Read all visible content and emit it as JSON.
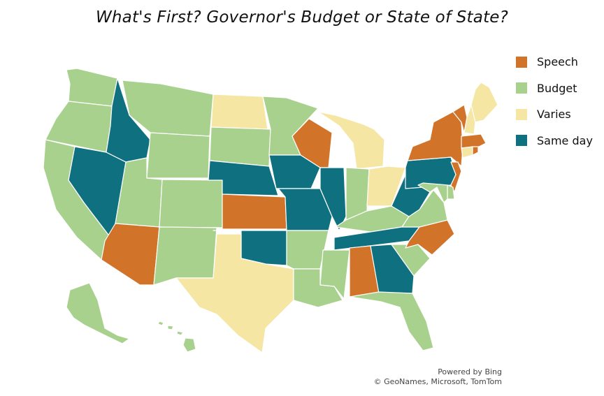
{
  "title": "What's First? Governor's Budget or State of State?",
  "legend": [
    {
      "key": "speech",
      "label": "Speech",
      "color": "#D2732A"
    },
    {
      "key": "budget",
      "label": "Budget",
      "color": "#A9D18E"
    },
    {
      "key": "varies",
      "label": "Varies",
      "color": "#F5E6A3"
    },
    {
      "key": "same",
      "label": "Same day",
      "color": "#0F7180"
    }
  ],
  "states": {
    "WA": "budget",
    "OR": "budget",
    "CA": "budget",
    "NV": "same",
    "ID": "same",
    "MT": "budget",
    "WY": "budget",
    "UT": "budget",
    "AZ": "speech",
    "CO": "budget",
    "NM": "budget",
    "ND": "varies",
    "SD": "budget",
    "NE": "same",
    "KS": "speech",
    "OK": "same",
    "TX": "varies",
    "MN": "budget",
    "IA": "same",
    "MO": "same",
    "AR": "budget",
    "LA": "budget",
    "WI": "speech",
    "IL": "same",
    "MI": "varies",
    "IN": "budget",
    "OH": "varies",
    "KY": "budget",
    "TN": "same",
    "MS": "budget",
    "AL": "speech",
    "GA": "same",
    "FL": "budget",
    "SC": "budget",
    "NC": "speech",
    "VA": "budget",
    "WV": "same",
    "PA": "same",
    "NY": "speech",
    "VT": "speech",
    "NH": "varies",
    "ME": "varies",
    "MA": "speech",
    "CT": "varies",
    "RI": "speech",
    "NJ": "speech",
    "DE": "budget",
    "MD": "budget",
    "AK": "budget",
    "HI": "budget"
  },
  "attribution": {
    "line1": "Powered by Bing",
    "line2": "© GeoNames, Microsoft, TomTom"
  }
}
